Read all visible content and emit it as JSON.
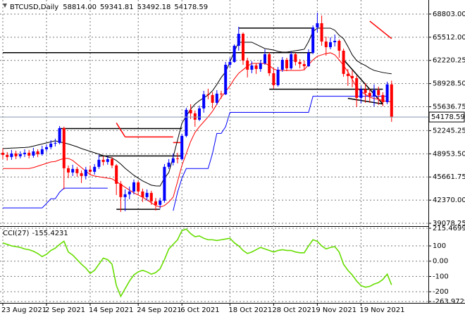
{
  "chart_data": [
    {
      "type": "candlestick",
      "title": "BTCUSD,Daily",
      "ohlc_labels": [
        "58814.00",
        "59341.81",
        "53492.18",
        "54178.59"
      ],
      "up_color": "#0000ff",
      "down_color": "#ff0000",
      "grid": true,
      "ylim": [
        38780,
        70600
      ],
      "yticks": [
        {
          "value": 68803,
          "label": "68803.00"
        },
        {
          "value": 65512,
          "label": "65512.00"
        },
        62220.25,
        {
          "value": 58928.5,
          "label": "58928.50"
        },
        55636.75,
        52245.25,
        {
          "value": 48953.5,
          "label": "48953.50"
        },
        45661.75,
        {
          "value": 42370,
          "label": "42370.00"
        },
        39078.25
      ],
      "categories": [
        "23 Aug 2021",
        null,
        null,
        null,
        null,
        null,
        null,
        null,
        null,
        null,
        "2 Sep 2021",
        null,
        null,
        null,
        null,
        null,
        null,
        null,
        null,
        null,
        "14 Sep 2021",
        null,
        null,
        null,
        null,
        null,
        null,
        null,
        null,
        null,
        null,
        "24 Sep 2021",
        null,
        null,
        null,
        null,
        null,
        null,
        null,
        null,
        null,
        "6 Oct 2021",
        null,
        null,
        null,
        null,
        null,
        null,
        null,
        null,
        null,
        null,
        "18 Oct 2021",
        null,
        null,
        null,
        null,
        null,
        null,
        null,
        null,
        null,
        "28 Oct 2021",
        null,
        null,
        null,
        null,
        null,
        null,
        null,
        null,
        null,
        "9 Nov 2021",
        null,
        null,
        null,
        null,
        null,
        null,
        null,
        null,
        null,
        "19 Nov 2021",
        null,
        null,
        null,
        null,
        null,
        null,
        null
      ],
      "open": [
        49100,
        48800,
        48500,
        49000,
        48600,
        48900,
        49100,
        48700,
        49300,
        48900,
        49600,
        49900,
        50400,
        50500,
        52600,
        46900,
        46300,
        46800,
        46200,
        45800,
        46700,
        46400,
        47100,
        48100,
        47800,
        48200,
        47300,
        44700,
        42800,
        43200,
        43600,
        44900,
        43600,
        42800,
        43400,
        42200,
        41700,
        42300,
        47100,
        47700,
        48300,
        48200,
        51500,
        55200,
        54700,
        53800,
        55400,
        57400,
        57300,
        56200,
        57500,
        57400,
        61600,
        62000,
        64300,
        66000,
        62200,
        60900,
        61500,
        61000,
        61800,
        63100,
        60400,
        58700,
        60900,
        62300,
        61100,
        63100,
        62000,
        61700,
        61400,
        63300,
        66900,
        67500,
        64900,
        64100,
        64800,
        65000,
        63600,
        60300,
        60000,
        59700,
        56900,
        58100,
        57600,
        57100,
        58000,
        57300,
        56300,
        58814
      ],
      "high": [
        49700,
        49200,
        49500,
        49400,
        49300,
        49600,
        49500,
        49800,
        49600,
        50100,
        50300,
        50900,
        51100,
        52900,
        52800,
        47300,
        47400,
        47100,
        46600,
        47100,
        47300,
        47500,
        48800,
        48600,
        48600,
        48500,
        47500,
        45100,
        43900,
        44300,
        45300,
        45100,
        44000,
        43900,
        43700,
        42700,
        42700,
        47500,
        48200,
        49000,
        49100,
        51800,
        55500,
        56000,
        55100,
        55800,
        57900,
        58200,
        57700,
        58000,
        57900,
        62000,
        62600,
        64500,
        67000,
        66200,
        62600,
        62100,
        61800,
        62300,
        63800,
        63400,
        61100,
        61300,
        62700,
        62600,
        63500,
        63300,
        62400,
        62200,
        63800,
        67200,
        69000,
        68600,
        65600,
        65500,
        65900,
        65200,
        63900,
        61000,
        60800,
        60100,
        58600,
        59000,
        58200,
        58800,
        58500,
        57700,
        59200,
        59341.81
      ],
      "low": [
        48200,
        48000,
        48100,
        48200,
        48300,
        48500,
        48300,
        48400,
        48500,
        48700,
        49300,
        49600,
        50000,
        50300,
        43900,
        45500,
        45800,
        45700,
        44800,
        45300,
        45900,
        46000,
        46800,
        47300,
        47400,
        46900,
        43100,
        40700,
        40800,
        42500,
        43200,
        43200,
        42100,
        42300,
        41700,
        40900,
        41200,
        42000,
        46800,
        47300,
        47600,
        48000,
        51300,
        53900,
        52800,
        53600,
        54800,
        56700,
        55400,
        55900,
        56800,
        57300,
        61200,
        61900,
        63600,
        61600,
        59800,
        60400,
        60300,
        60600,
        61600,
        60000,
        58200,
        58500,
        60600,
        60700,
        60900,
        61500,
        61100,
        60800,
        61300,
        63100,
        66200,
        64300,
        62900,
        63800,
        64200,
        62600,
        59900,
        58600,
        58400,
        55600,
        56100,
        56200,
        56200,
        55700,
        55900,
        55700,
        56000,
        53492.18
      ],
      "close": [
        48800,
        48500,
        49000,
        48600,
        48900,
        49100,
        48700,
        49300,
        48900,
        49600,
        49900,
        50400,
        50500,
        52600,
        46900,
        46300,
        46800,
        46200,
        45800,
        46700,
        46400,
        47100,
        48100,
        47800,
        48200,
        47300,
        44700,
        42800,
        43200,
        43600,
        44900,
        43600,
        42800,
        43400,
        42200,
        41700,
        42300,
        47100,
        47700,
        48300,
        48200,
        51500,
        55200,
        54700,
        53800,
        55400,
        57400,
        57300,
        56200,
        57500,
        57400,
        61600,
        62000,
        64300,
        66000,
        62200,
        60900,
        61500,
        61000,
        61800,
        63100,
        60400,
        58700,
        60900,
        62300,
        61100,
        63100,
        62000,
        61700,
        61400,
        63300,
        66900,
        67500,
        64900,
        64100,
        64800,
        65000,
        63600,
        60300,
        60000,
        59700,
        56900,
        58100,
        57600,
        57100,
        58000,
        57300,
        56300,
        58814,
        54178.59
      ],
      "series": [
        {
          "color": "#000000",
          "values": [
            49700,
            49730,
            49760,
            49790,
            49820,
            49850,
            49900,
            50050,
            50200,
            50350,
            50500,
            50650,
            50800,
            50650,
            50500,
            50350,
            50150,
            49950,
            49700,
            49500,
            49300,
            49100,
            48900,
            48700,
            48500,
            48350,
            48000,
            47500,
            46900,
            46400,
            45900,
            45500,
            45100,
            44800,
            44500,
            44400,
            44370,
            45500,
            46300,
            48500,
            50900,
            53300,
            54300,
            55300,
            56000,
            56500,
            56900,
            57300,
            57900,
            58800,
            59800,
            60600,
            62000,
            63500,
            64800,
            64800,
            64800,
            64800,
            64500,
            64200,
            63900,
            63800,
            63700,
            63500,
            63400,
            63400,
            63500,
            63600,
            63700,
            63800,
            64900,
            66300,
            66800,
            66800,
            66800,
            66800,
            66500,
            65800,
            65300,
            64200,
            63000,
            62200,
            61800,
            61500,
            61100,
            60800,
            60650,
            60500,
            60400,
            60320
          ]
        },
        {
          "color": "#ff0000",
          "values": [
            46860,
            46860,
            46860,
            46860,
            46860,
            46860,
            46860,
            47000,
            47200,
            47400,
            47600,
            47800,
            47860,
            48100,
            48300,
            48300,
            48000,
            47500,
            47000,
            46500,
            46000,
            45800,
            45700,
            45600,
            45500,
            45400,
            45000,
            44600,
            44200,
            43800,
            43400,
            43100,
            42800,
            42400,
            42000,
            41600,
            41400,
            41600,
            42100,
            42800,
            45000,
            47300,
            49000,
            50700,
            52000,
            52800,
            53500,
            54200,
            55000,
            56000,
            57000,
            57800,
            58600,
            59600,
            60400,
            60900,
            61400,
            61800,
            61800,
            61800,
            61800,
            61500,
            61000,
            60800,
            60800,
            60800,
            60800,
            60800,
            60800,
            60900,
            61600,
            62300,
            62800,
            63000,
            63200,
            63300,
            63000,
            62300,
            61500,
            60600,
            59500,
            58400,
            57800,
            57400,
            57000,
            56800,
            56700,
            56500,
            56400,
            56330
          ]
        },
        {
          "color": "#0000ff",
          "values": [
            41270,
            41270,
            41270,
            41270,
            41270,
            41270,
            41270,
            41270,
            41270,
            41270,
            41900,
            42570,
            42570,
            43500,
            44070,
            44070,
            44070,
            44070,
            44070,
            44070,
            44070,
            44070,
            44070,
            44070,
            44070,
            null,
            null,
            null,
            null,
            null,
            null,
            null,
            null,
            null,
            null,
            null,
            null,
            null,
            null,
            40870,
            43500,
            45500,
            46860,
            46860,
            46860,
            46860,
            46860,
            46860,
            49000,
            51850,
            51850,
            52800,
            54840,
            54840,
            54840,
            54840,
            54840,
            54840,
            54840,
            54840,
            54840,
            54840,
            54840,
            54840,
            54840,
            54840,
            54840,
            54840,
            54840,
            54840,
            54840,
            57130,
            57130,
            57130,
            57130,
            57130,
            57130,
            57130,
            57130,
            57130,
            57130,
            57130,
            57130,
            57130,
            57130,
            57130,
            57130,
            57130,
            57130,
            null
          ]
        }
      ],
      "levels": [
        {
          "x": [
            0,
            71
          ],
          "values": [
            63317,
            63317
          ],
          "color": "#000000"
        },
        {
          "x": [
            54,
            71
          ],
          "values": [
            66808,
            66808
          ],
          "color": "#000000"
        },
        {
          "x": [
            61,
            87
          ],
          "values": [
            58130,
            58130
          ],
          "color": "#000000"
        },
        {
          "x": [
            22,
            41
          ],
          "values": [
            48653,
            48653
          ],
          "color": "#000000"
        },
        {
          "x": [
            26,
            36
          ],
          "values": [
            41073,
            41073
          ],
          "color": "#000000"
        },
        {
          "x": [
            13,
            41
          ],
          "values": [
            52544,
            52544
          ],
          "color": "#000000"
        },
        {
          "x": [
            78,
            87
          ],
          "values": [
            62320,
            56030
          ],
          "color": "#000000"
        },
        {
          "x": [
            79,
            87
          ],
          "values": [
            56830,
            56030
          ],
          "color": "#000000"
        },
        {
          "x": [
            26,
            28
          ],
          "values": [
            53340,
            51350
          ],
          "color": "#ff0000"
        },
        {
          "x": [
            28,
            39
          ],
          "values": [
            51350,
            51350
          ],
          "color": "#ff0000"
        },
        {
          "x": [
            39,
            41
          ],
          "values": [
            50550,
            50550
          ],
          "color": "#ff0000"
        },
        {
          "x": [
            84,
            89
          ],
          "values": [
            67805,
            65312
          ],
          "color": "#ff0000"
        }
      ]
    },
    {
      "type": "line",
      "title": "CCI(27)",
      "grid": true,
      "ylim": [
        -263.9729,
        215.4699
      ],
      "yticks": [
        215.4699,
        100,
        {
          "value": 0,
          "label": "0.00"
        },
        -100,
        -200,
        -263.9729
      ],
      "series": [
        {
          "color": "#66dd00",
          "values": [
            120,
            110,
            100,
            95,
            90,
            80,
            75,
            65,
            50,
            30,
            45,
            70,
            85,
            110,
            130,
            60,
            40,
            10,
            -20,
            -45,
            -80,
            -60,
            -20,
            20,
            10,
            -20,
            -160,
            -230,
            -180,
            -130,
            -90,
            -70,
            -60,
            -70,
            -85,
            -75,
            -50,
            10,
            80,
            110,
            140,
            200,
            210,
            180,
            160,
            165,
            150,
            140,
            140,
            135,
            140,
            145,
            150,
            120,
            100,
            70,
            50,
            60,
            75,
            90,
            80,
            70,
            60,
            70,
            75,
            70,
            70,
            60,
            55,
            55,
            100,
            140,
            130,
            100,
            80,
            90,
            95,
            60,
            -20,
            -60,
            -90,
            -130,
            -160,
            -170,
            -165,
            -150,
            -140,
            -120,
            -85,
            -155.4231
          ]
        }
      ]
    }
  ]
}
